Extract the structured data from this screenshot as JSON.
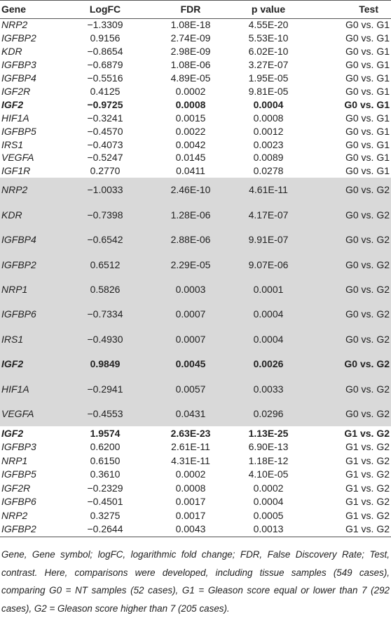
{
  "table": {
    "header": [
      "Gene",
      "LogFC",
      "FDR",
      "p value",
      "Test"
    ],
    "groups": [
      {
        "shaded": false,
        "rows": [
          {
            "bold": false,
            "cells": [
              "NRP2",
              "−1.3309",
              "1.08E-18",
              "4.55E-20",
              "G0 vs. G1"
            ]
          },
          {
            "bold": false,
            "cells": [
              "IGFBP2",
              "0.9156",
              "2.74E-09",
              "5.53E-10",
              "G0 vs. G1"
            ]
          },
          {
            "bold": false,
            "cells": [
              "KDR",
              "−0.8654",
              "2.98E-09",
              "6.02E-10",
              "G0 vs. G1"
            ]
          },
          {
            "bold": false,
            "cells": [
              "IGFBP3",
              "−0.6879",
              "1.08E-06",
              "3.27E-07",
              "G0 vs. G1"
            ]
          },
          {
            "bold": false,
            "cells": [
              "IGFBP4",
              "−0.5516",
              "4.89E-05",
              "1.95E-05",
              "G0 vs. G1"
            ]
          },
          {
            "bold": false,
            "cells": [
              "IGF2R",
              "0.4125",
              "0.0002",
              "9.81E-05",
              "G0 vs. G1"
            ]
          },
          {
            "bold": true,
            "cells": [
              "IGF2",
              "−0.9725",
              "0.0008",
              "0.0004",
              "G0 vs. G1"
            ]
          },
          {
            "bold": false,
            "cells": [
              "HIF1A",
              "−0.3241",
              "0.0015",
              "0.0008",
              "G0 vs. G1"
            ]
          },
          {
            "bold": false,
            "cells": [
              "IGFBP5",
              "−0.4570",
              "0.0022",
              "0.0012",
              "G0 vs. G1"
            ]
          },
          {
            "bold": false,
            "cells": [
              "IRS1",
              "−0.4073",
              "0.0042",
              "0.0023",
              "G0 vs. G1"
            ]
          },
          {
            "bold": false,
            "cells": [
              "VEGFA",
              "−0.5247",
              "0.0145",
              "0.0089",
              "G0 vs. G1"
            ]
          },
          {
            "bold": false,
            "cells": [
              "IGF1R",
              "0.2770",
              "0.0411",
              "0.0278",
              "G0 vs. G1"
            ]
          }
        ]
      },
      {
        "shaded": true,
        "rows": [
          {
            "bold": false,
            "cells": [
              "NRP2",
              "−1.0033",
              "2.46E-10",
              "4.61E-11",
              "G0 vs. G2"
            ]
          },
          {
            "bold": false,
            "cells": [
              "KDR",
              "−0.7398",
              "1.28E-06",
              "4.17E-07",
              "G0 vs. G2"
            ]
          },
          {
            "bold": false,
            "cells": [
              "IGFBP4",
              "−0.6542",
              "2.88E-06",
              "9.91E-07",
              "G0 vs. G2"
            ]
          },
          {
            "bold": false,
            "cells": [
              "IGFBP2",
              "0.6512",
              "2.29E-05",
              "9.07E-06",
              "G0 vs. G2"
            ]
          },
          {
            "bold": false,
            "cells": [
              "NRP1",
              "0.5826",
              "0.0003",
              "0.0001",
              "G0 vs. G2"
            ]
          },
          {
            "bold": false,
            "cells": [
              "IGFBP6",
              "−0.7334",
              "0.0007",
              "0.0004",
              "G0 vs. G2"
            ]
          },
          {
            "bold": false,
            "cells": [
              "IRS1",
              "−0.4930",
              "0.0007",
              "0.0004",
              "G0 vs. G2"
            ]
          },
          {
            "bold": true,
            "cells": [
              "IGF2",
              "0.9849",
              "0.0045",
              "0.0026",
              "G0 vs. G2"
            ]
          },
          {
            "bold": false,
            "cells": [
              "HIF1A",
              "−0.2941",
              "0.0057",
              "0.0033",
              "G0 vs. G2"
            ]
          },
          {
            "bold": false,
            "cells": [
              "VEGFA",
              "−0.4553",
              "0.0431",
              "0.0296",
              "G0 vs. G2"
            ]
          }
        ]
      },
      {
        "shaded": false,
        "rows": [
          {
            "bold": true,
            "cells": [
              "IGF2",
              "1.9574",
              "2.63E-23",
              "1.13E-25",
              "G1 vs. G2"
            ]
          },
          {
            "bold": false,
            "cells": [
              "IGFBP3",
              "0.6200",
              "2.61E-11",
              "6.90E-13",
              "G1 vs. G2"
            ]
          },
          {
            "bold": false,
            "cells": [
              "NRP1",
              "0.6150",
              "4.31E-11",
              "1.18E-12",
              "G1 vs. G2"
            ]
          },
          {
            "bold": false,
            "cells": [
              "IGFBP5",
              "0.3610",
              "0.0002",
              "4.10E-05",
              "G1 vs. G2"
            ]
          },
          {
            "bold": false,
            "cells": [
              "IGF2R",
              "−0.2329",
              "0.0008",
              "0.0002",
              "G1 vs. G2"
            ]
          },
          {
            "bold": false,
            "cells": [
              "IGFBP6",
              "−0.4501",
              "0.0017",
              "0.0004",
              "G1 vs. G2"
            ]
          },
          {
            "bold": false,
            "cells": [
              "NRP2",
              "0.3275",
              "0.0017",
              "0.0005",
              "G1 vs. G2"
            ]
          },
          {
            "bold": false,
            "cells": [
              "IGFBP2",
              "−0.2644",
              "0.0043",
              "0.0013",
              "G1 vs. G2"
            ]
          }
        ]
      }
    ],
    "footnote": "Gene, Gene symbol; logFC, logarithmic fold change; FDR, False Discovery Rate; Test, contrast. Here, comparisons were developed, including tissue samples (549 cases), comparing G0 = NT samples (52 cases), G1 = Gleason score equal or lower than 7 (292 cases), G2 = Gleason score higher than 7 (205 cases)."
  }
}
